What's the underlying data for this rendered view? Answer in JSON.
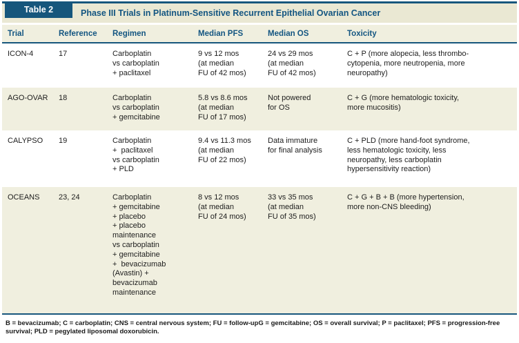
{
  "colors": {
    "accent_blue": "#16567c",
    "heading_text_blue": "#135581",
    "title_band_cream": "#eae8d3",
    "row_cream": "#f0efdf",
    "row_white": "#ffffff",
    "body_text": "#1c1c1c"
  },
  "table": {
    "tag": "Table 2",
    "title": "Phase III Trials in Platinum-Sensitive Recurrent Epithelial Ovarian Cancer",
    "columns": [
      "Trial",
      "Reference",
      "Regimen",
      "Median PFS",
      "Median OS",
      "Toxicity"
    ],
    "rows": [
      {
        "trial": "ICON-4",
        "reference": "17",
        "regimen": "Carboplatin\nvs carboplatin\n+ paclitaxel",
        "median_pfs": "9 vs 12 mos\n(at median\nFU of 42 mos)",
        "median_os": "24 vs 29 mos\n(at median\nFU of 42 mos)",
        "toxicity": "C + P (more alopecia, less thrombo-\ncytopenia, more neutropenia, more\nneuropathy)"
      },
      {
        "trial": "AGO-OVAR",
        "reference": "18",
        "regimen": "Carboplatin\nvs carboplatin\n+ gemcitabine",
        "median_pfs": "5.8 vs 8.6 mos\n(at median\nFU of 17 mos)",
        "median_os": "Not powered\nfor OS",
        "toxicity": "C + G (more hematologic toxicity,\nmore mucositis)"
      },
      {
        "trial": "CALYPSO",
        "reference": "19",
        "regimen": "Carboplatin\n+  paclitaxel\nvs carboplatin\n+ PLD",
        "median_pfs": "9.4 vs 11.3 mos\n(at median\nFU of 22 mos)",
        "median_os": "Data immature\nfor final analysis",
        "toxicity": "C + PLD (more hand-foot syndrome,\nless hematologic toxicity, less\nneuropathy, less carboplatin\nhypersensitivity reaction)"
      },
      {
        "trial": "OCEANS",
        "reference": "23, 24",
        "regimen": "Carboplatin\n+ gemcitabine\n+ placebo\n+ placebo\nmaintenance\nvs carboplatin\n+ gemcitabine\n+  bevacizumab\n(Avastin) +\nbevacizumab\nmaintenance",
        "median_pfs": "8 vs 12 mos\n(at median\nFU of 24 mos)",
        "median_os": "33 vs 35 mos\n(at median\nFU of 35 mos)",
        "toxicity": "C + G + B + B (more hypertension,\nmore non-CNS bleeding)"
      }
    ],
    "footnote": "B = bevacizumab; C = carboplatin; CNS = central nervous system; FU = follow-upG = gemcitabine; OS = overall survival; P = paclitaxel; PFS = progression-free\nsurvival; PLD = pegylated liposomal doxorubicin."
  }
}
